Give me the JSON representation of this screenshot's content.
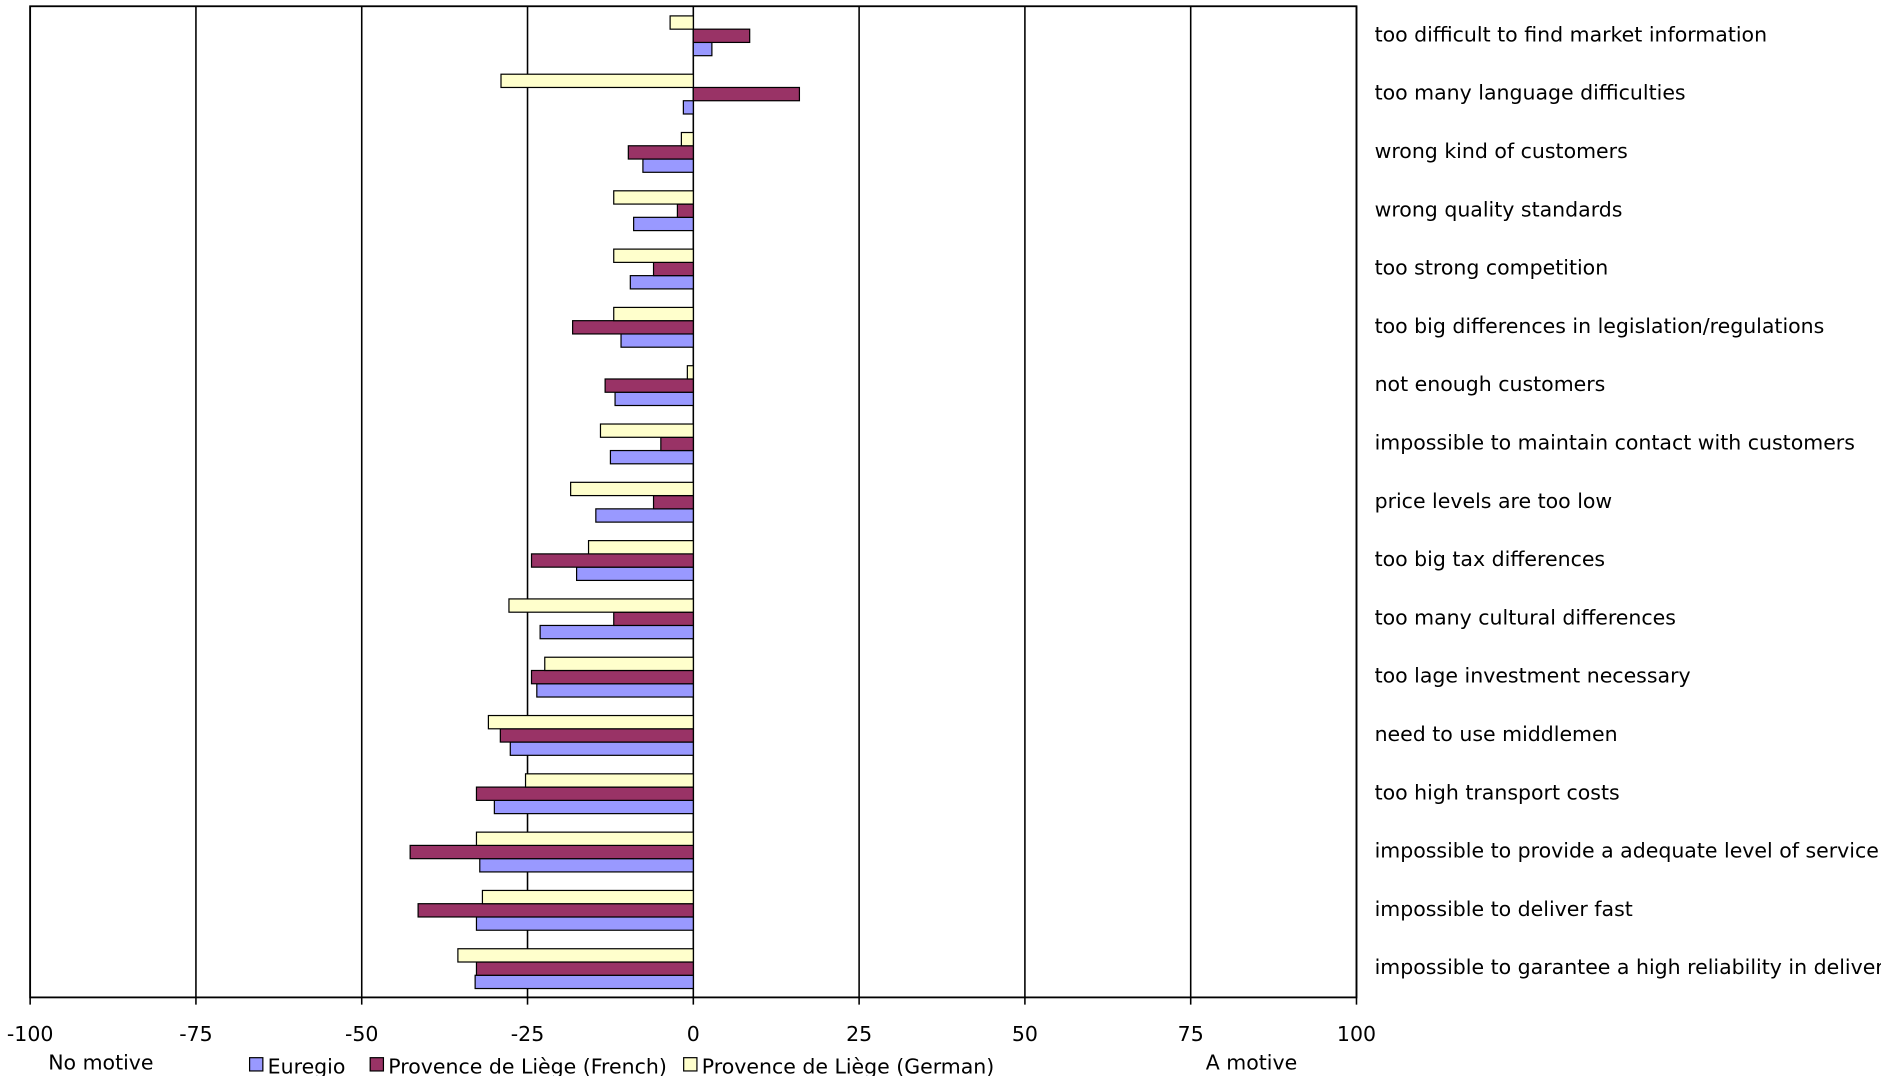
{
  "chart_data": {
    "type": "bar",
    "orientation": "horizontal",
    "categories": [
      "too difficult to find market information",
      "too many language difficulties",
      "wrong kind of customers",
      "wrong quality standards",
      "too strong competition",
      "too big differences in legislation/regulations",
      "not enough customers",
      "impossible to maintain contact with customers",
      "price levels are too low",
      "too big tax differences",
      "too many cultural differences",
      "too lage investment necessary",
      "need to use middlemen",
      "too high transport costs",
      "impossible to provide a adequate level of service",
      "impossible to deliver fast",
      "impossible to garantee a high reliability in delivery"
    ],
    "series": [
      {
        "name": "Euregio",
        "color": "#9999ff",
        "values": [
          2.8,
          -1.5,
          -7.6,
          -9,
          -9.5,
          -10.9,
          -11.8,
          -12.5,
          -14.7,
          -17.6,
          -23.1,
          -23.6,
          -27.6,
          -30,
          -32.2,
          -32.7,
          -32.9
        ]
      },
      {
        "name": "Provence de Liège (French)",
        "color": "#993366",
        "values": [
          8.5,
          16,
          -9.8,
          -2.4,
          -6,
          -18.2,
          -13.3,
          -4.9,
          -6,
          -24.4,
          -12,
          -24.4,
          -29.1,
          -32.7,
          -42.7,
          -41.5,
          -32.7
        ]
      },
      {
        "name": "Provence de Liège (German)",
        "color": "#ffffcc",
        "values": [
          -3.5,
          -29,
          -1.8,
          -12,
          -12,
          -12,
          -0.9,
          -14,
          -18.5,
          -15.8,
          -27.8,
          -22.4,
          -30.9,
          -25.3,
          -32.7,
          -31.8,
          -35.5
        ]
      }
    ],
    "xlim": [
      -100,
      100
    ],
    "xticks": [
      -100,
      -75,
      -50,
      -25,
      0,
      25,
      50,
      75,
      100
    ],
    "x_annotation_left": "No motive",
    "x_annotation_right": "A motive",
    "grid": true
  }
}
